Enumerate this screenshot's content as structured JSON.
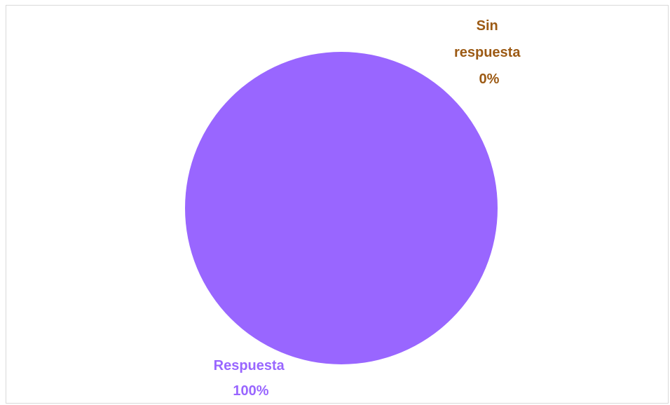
{
  "chart_data": {
    "type": "pie",
    "categories": [
      "Respuesta",
      "Sin respuesta"
    ],
    "values": [
      100,
      0
    ],
    "unit": "%",
    "colors": [
      "#9966ff",
      "#9c5a14"
    ],
    "labels": [
      {
        "lines": [
          "Respuesta",
          "100%"
        ]
      },
      {
        "lines": [
          "Sin",
          "respuesta",
          "0%"
        ]
      }
    ],
    "legend": "none"
  }
}
